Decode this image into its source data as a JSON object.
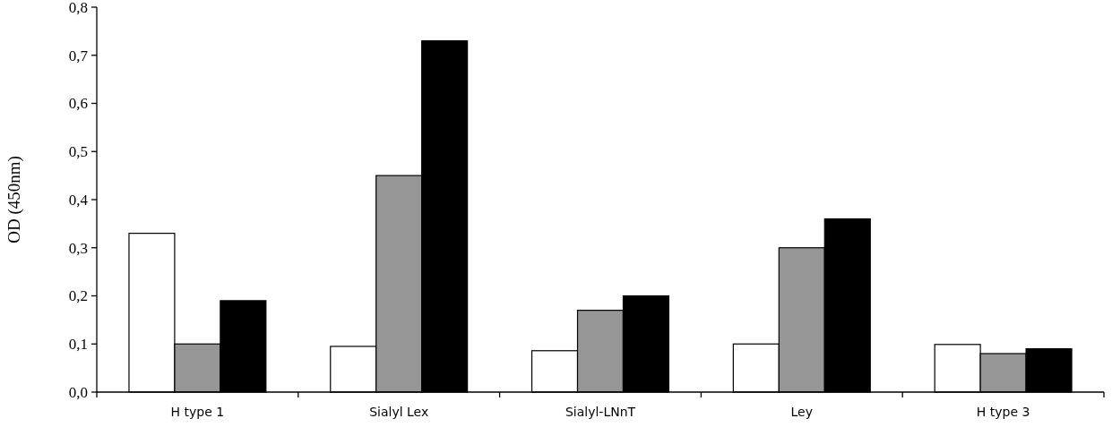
{
  "chart_data": {
    "type": "bar",
    "ylabel": "OD (450nm)",
    "categories": [
      "H type 1",
      "Sialyl Lex",
      "Sialyl-LNnT",
      "Ley",
      "H type 3"
    ],
    "series": [
      {
        "color": "#ffffff",
        "values": [
          0.33,
          0.095,
          0.086,
          0.1,
          0.099
        ]
      },
      {
        "color": "#969696",
        "values": [
          0.1,
          0.45,
          0.17,
          0.3,
          0.08
        ]
      },
      {
        "color": "#000000",
        "values": [
          0.19,
          0.73,
          0.2,
          0.36,
          0.09
        ]
      }
    ],
    "ylim": [
      0,
      0.8
    ],
    "yticks": [
      {
        "value": 0,
        "label": "0,0"
      },
      {
        "value": 0.1,
        "label": "0,1"
      },
      {
        "value": 0.2,
        "label": "0,2"
      },
      {
        "value": 0.3,
        "label": "0,3"
      },
      {
        "value": 0.4,
        "label": "0,4"
      },
      {
        "value": 0.5,
        "label": "0,5"
      },
      {
        "value": 0.6,
        "label": "0,6"
      },
      {
        "value": 0.7,
        "label": "0,7"
      },
      {
        "value": 0.8,
        "label": "0,8"
      }
    ],
    "grid": false
  }
}
